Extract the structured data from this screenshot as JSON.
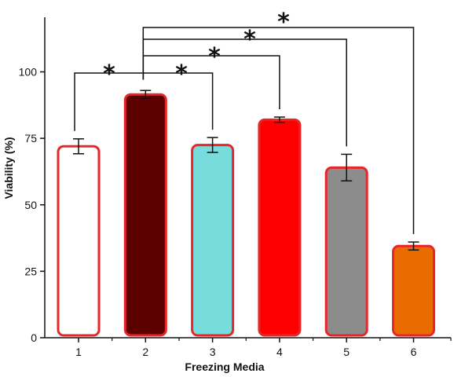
{
  "chart_data": {
    "type": "bar",
    "title": "",
    "xlabel": "Freezing Media",
    "ylabel": "Viability (%)",
    "ylim": [
      0,
      125
    ],
    "yticks": [
      0,
      25,
      50,
      75,
      100
    ],
    "grid": false,
    "categories": [
      "1",
      "2",
      "3",
      "4",
      "5",
      "6"
    ],
    "values": [
      72,
      91.5,
      72.5,
      82,
      64,
      34.5
    ],
    "errors": [
      2.8,
      1.5,
      2.8,
      1.0,
      5.0,
      1.5
    ],
    "bar_fills": [
      "#ffffff",
      "#5c0000",
      "#77dcdc",
      "#ff0000",
      "#8c8c8c",
      "#e86c00"
    ],
    "bar_edge": "#e8262a",
    "significance": [
      {
        "from": "1",
        "to": "2",
        "label": "*"
      },
      {
        "from": "2",
        "to": "3",
        "label": "*"
      },
      {
        "from": "2",
        "to": "4",
        "label": "*"
      },
      {
        "from": "2",
        "to": "5",
        "label": "*"
      },
      {
        "from": "2",
        "to": "6",
        "label": "*"
      }
    ]
  }
}
